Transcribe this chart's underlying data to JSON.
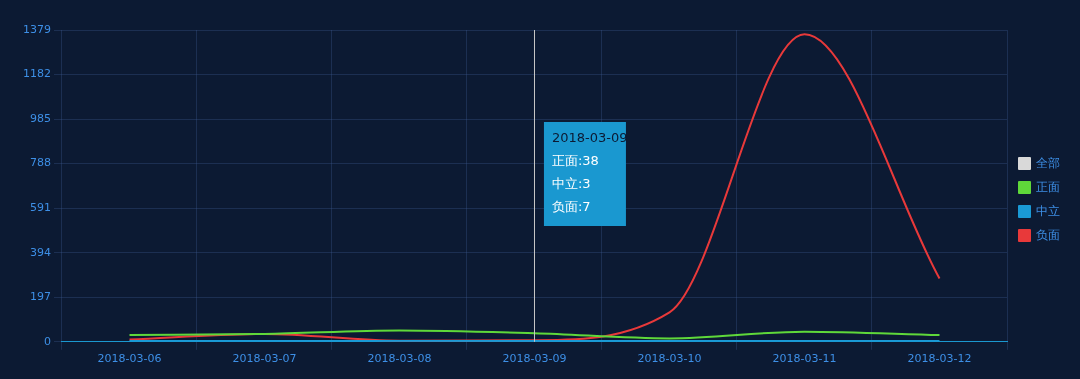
{
  "chart_data": {
    "type": "line",
    "categories": [
      "2018-03-06",
      "2018-03-07",
      "2018-03-08",
      "2018-03-09",
      "2018-03-10",
      "2018-03-11",
      "2018-03-12"
    ],
    "series": [
      {
        "name": "全部",
        "color": "#d9d9d9",
        "values": [
          null,
          null,
          null,
          null,
          null,
          null,
          null
        ]
      },
      {
        "name": "正面",
        "color": "#5fd83a",
        "values": [
          30,
          35,
          50,
          38,
          15,
          45,
          30
        ]
      },
      {
        "name": "中立",
        "color": "#1a9ad6",
        "values": [
          3,
          3,
          3,
          3,
          3,
          3,
          3
        ]
      },
      {
        "name": "负面",
        "color": "#e8393a",
        "values": [
          10,
          35,
          5,
          7,
          130,
          1360,
          280
        ]
      }
    ],
    "ylim": [
      0,
      1379
    ],
    "yticks": [
      0,
      197,
      394,
      591,
      788,
      985,
      1182,
      1379
    ],
    "grid": true,
    "legend": "right",
    "marker": "none",
    "line_style": "solid",
    "ref_lines": [
      {
        "axis": "x",
        "value": "2018-03-09",
        "color": "#c8c8c8"
      }
    ],
    "annotations": [
      "2018-03-09",
      "正面:38",
      "中立:3",
      "负面:7"
    ]
  }
}
